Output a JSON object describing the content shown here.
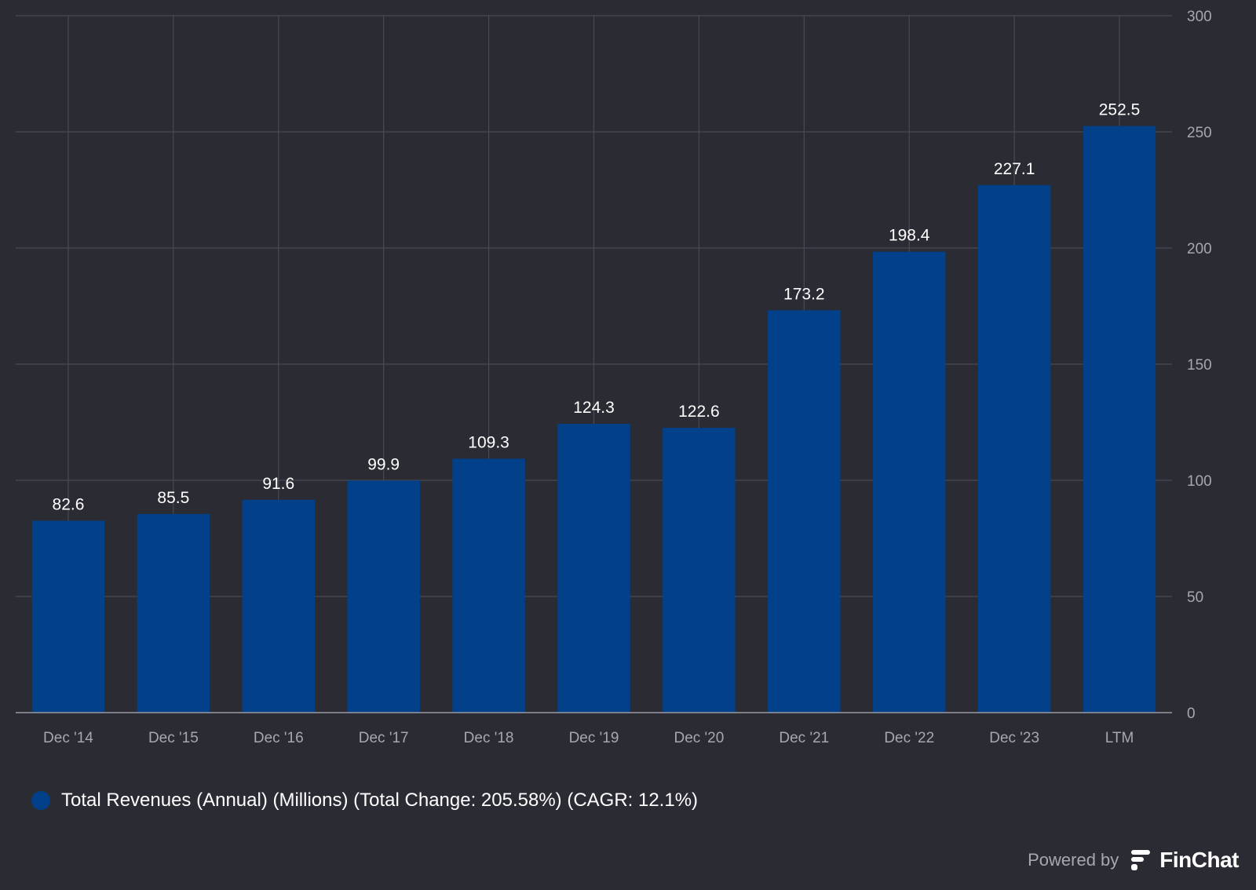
{
  "chart_data": {
    "type": "bar",
    "categories": [
      "Dec '14",
      "Dec '15",
      "Dec '16",
      "Dec '17",
      "Dec '18",
      "Dec '19",
      "Dec '20",
      "Dec '21",
      "Dec '22",
      "Dec '23",
      "LTM"
    ],
    "series": [
      {
        "name": "Total Revenues (Annual) (Millions) (Total Change: 205.58%) (CAGR: 12.1%)",
        "values": [
          82.6,
          85.5,
          91.6,
          99.9,
          109.3,
          124.3,
          122.6,
          173.2,
          198.4,
          227.1,
          252.5
        ]
      }
    ],
    "data_labels": [
      "82.6",
      "85.5",
      "91.6",
      "99.9",
      "109.3",
      "124.3",
      "122.6",
      "173.2",
      "198.4",
      "227.1",
      "252.5"
    ],
    "y_ticks": [
      "0",
      "50",
      "100",
      "150",
      "200",
      "250",
      "300"
    ],
    "ylim": [
      0,
      300
    ],
    "y_axis_side": "right",
    "grid": true,
    "legend_position": "bottom-left",
    "bar_color": "#02418a",
    "legend_color": "#02418a",
    "background": "#2b2b33"
  },
  "legend": {
    "label": "Total Revenues (Annual) (Millions) (Total Change: 205.58%) (CAGR: 12.1%)"
  },
  "branding": {
    "powered_by": "Powered by",
    "brand": "FinChat",
    "logo_icon": "finchat-logo-icon"
  }
}
